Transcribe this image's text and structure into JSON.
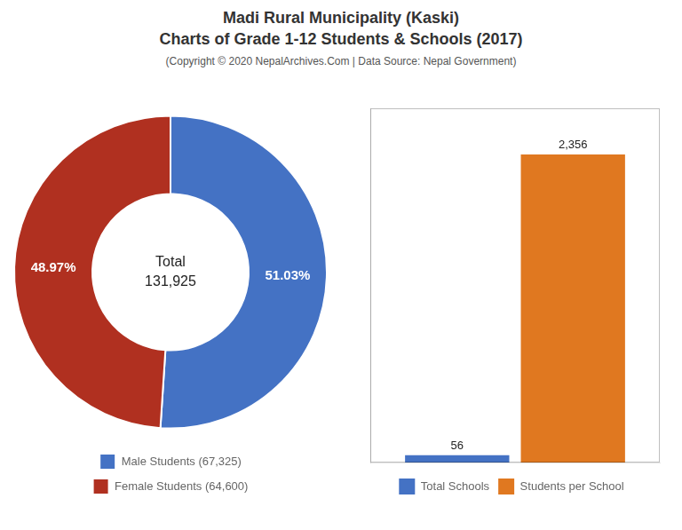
{
  "title": [
    "Madi Rural Municipality (Kaski)",
    "Charts of Grade 1-12 Students & Schools (2017)"
  ],
  "subtitle": "(Copyright © 2020 NepalArchives.Com | Data Source: Nepal Government)",
  "chart_data": [
    {
      "type": "doughnut",
      "categories": [
        "Male Students (67,325)",
        "Female Students (64,600)"
      ],
      "values": [
        51.03,
        48.97
      ],
      "value_labels": [
        "51.03%",
        "48.97%"
      ],
      "data_labels": true,
      "colors": [
        "#4472c4",
        "#b03020"
      ],
      "annotations": [
        "Total",
        "131,925"
      ],
      "legend": "bottom"
    },
    {
      "type": "bar",
      "categories": [
        null
      ],
      "series": [
        {
          "name": "Total Schools",
          "color": "#4472c4",
          "values": [
            56
          ]
        },
        {
          "name": "Students per School",
          "color": "#e07820",
          "values": [
            2356
          ],
          "value_labels": [
            "2,356"
          ]
        }
      ],
      "ylim": [
        0,
        2709.4
      ],
      "tick_labels": false,
      "grid": false,
      "data_labels": true,
      "legend": "bottom"
    }
  ]
}
